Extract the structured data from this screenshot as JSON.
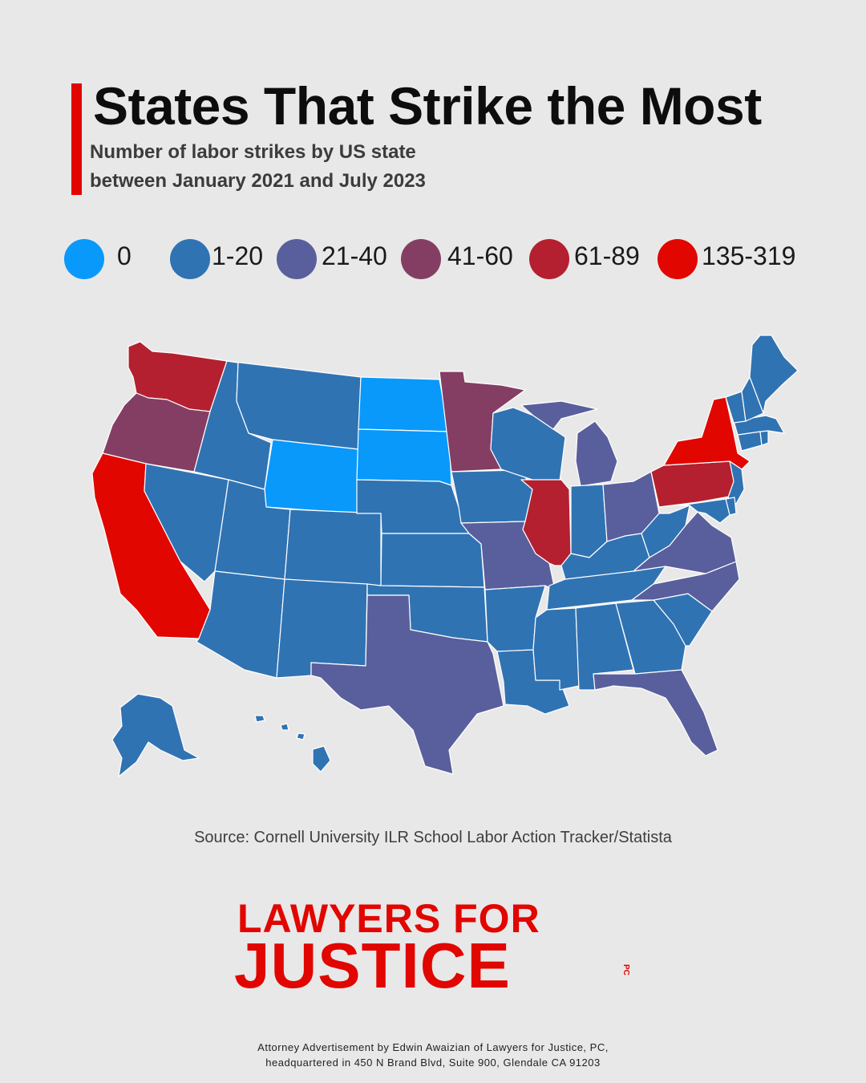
{
  "header": {
    "title": "States That Strike the Most",
    "subtitle_line1": "Number of labor strikes by US state",
    "subtitle_line2": "between January 2021 and July 2023",
    "accent_color": "#e10600"
  },
  "legend": [
    {
      "label": "0",
      "color": "#0899fb"
    },
    {
      "label": "1-20",
      "color": "#3073b3"
    },
    {
      "label": "21-40",
      "color": "#595f9c"
    },
    {
      "label": "41-60",
      "color": "#843e64"
    },
    {
      "label": "61-89",
      "color": "#b4202f"
    },
    {
      "label": "135-319",
      "color": "#e10600"
    }
  ],
  "map": {
    "state_bins": {
      "WA": "61-89",
      "OR": "41-60",
      "CA": "135-319",
      "NV": "1-20",
      "ID": "1-20",
      "MT": "1-20",
      "WY": "0",
      "UT": "1-20",
      "AZ": "1-20",
      "CO": "1-20",
      "NM": "1-20",
      "ND": "0",
      "SD": "0",
      "NE": "1-20",
      "KS": "1-20",
      "OK": "1-20",
      "TX": "21-40",
      "MN": "41-60",
      "IA": "1-20",
      "MO": "21-40",
      "AR": "1-20",
      "LA": "1-20",
      "WI": "1-20",
      "IL": "61-89",
      "MI": "21-40",
      "IN": "1-20",
      "OH": "21-40",
      "KY": "1-20",
      "TN": "1-20",
      "MS": "1-20",
      "AL": "1-20",
      "GA": "1-20",
      "FL": "21-40",
      "SC": "1-20",
      "NC": "21-40",
      "VA": "21-40",
      "WV": "1-20",
      "PA": "61-89",
      "NY": "135-319",
      "ME": "1-20",
      "NH": "1-20",
      "VT": "1-20",
      "MA": "1-20",
      "CT": "1-20",
      "RI": "1-20",
      "NJ": "1-20",
      "DE": "1-20",
      "MD": "1-20",
      "AK": "1-20",
      "HI": "1-20"
    }
  },
  "source": "Source: Cornell University ILR School Labor Action Tracker/Statista",
  "logo": {
    "line1": "LAWYERS FOR",
    "line2": "JUSTICE",
    "suffix": "PC",
    "color": "#e10600"
  },
  "disclaimer": {
    "line1": "Attorney Advertisement by Edwin Awaizian of Lawyers for Justice, PC,",
    "line2": "headquartered in 450 N Brand Blvd, Suite 900, Glendale CA 91203"
  }
}
